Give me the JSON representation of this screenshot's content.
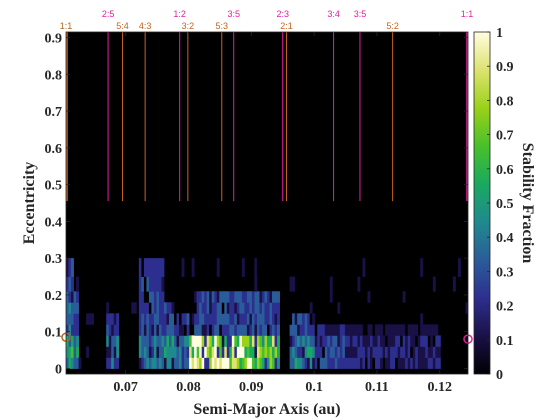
{
  "chart_data": {
    "type": "heatmap",
    "title": "",
    "xlabel": "Semi-Major Axis (au)",
    "ylabel": "Eccentricity",
    "colorbar_label": "Stability Fraction",
    "xlim": [
      0.0605,
      0.1245
    ],
    "ylim": [
      -0.015,
      0.915
    ],
    "x_ticks": [
      "0.07",
      "0.08",
      "0.09",
      "0.1",
      "0.11",
      "0.12"
    ],
    "x_tick_values": [
      0.07,
      0.08,
      0.09,
      0.1,
      0.11,
      0.12
    ],
    "y_ticks": [
      "0",
      "0.1",
      "0.2",
      "0.3",
      "0.4",
      "0.5",
      "0.6",
      "0.7",
      "0.8",
      "0.9"
    ],
    "y_tick_values": [
      0,
      0.1,
      0.2,
      0.3,
      0.4,
      0.5,
      0.6,
      0.7,
      0.8,
      0.9
    ],
    "colorbar_ticks": [
      "0",
      "0.1",
      "0.2",
      "0.3",
      "0.4",
      "0.5",
      "0.6",
      "0.7",
      "0.8",
      "0.9",
      "1"
    ],
    "colorbar_tick_values": [
      0,
      0.1,
      0.2,
      0.3,
      0.4,
      0.5,
      0.6,
      0.7,
      0.8,
      0.9,
      1
    ],
    "colormap": [
      "#000004",
      "#1a1147",
      "#2d2f8f",
      "#2b5c9a",
      "#1f8a8e",
      "#1aa960",
      "#49c02a",
      "#9ad11a",
      "#dde36e",
      "#fffde0"
    ],
    "inner_resonances": [
      {
        "label": "2:5",
        "a": 0.0672
      },
      {
        "label": "1:2",
        "a": 0.0786
      },
      {
        "label": "3:5",
        "a": 0.0872
      },
      {
        "label": "2:3",
        "a": 0.095
      },
      {
        "label": "3:4",
        "a": 0.1031
      },
      {
        "label": "3:5",
        "a": 0.1073
      }
    ],
    "outer_resonances": [
      {
        "label": "5:4",
        "a": 0.0695
      },
      {
        "label": "4:3",
        "a": 0.0731
      },
      {
        "label": "3:2",
        "a": 0.0799
      },
      {
        "label": "5:3",
        "a": 0.0853
      },
      {
        "label": "2:1",
        "a": 0.0956
      },
      {
        "label": "5:2",
        "a": 0.1125
      }
    ],
    "edge_labels": [
      {
        "label": "1:1",
        "a": 0.0605,
        "color": "#b5651d"
      },
      {
        "label": "1:1",
        "a": 0.1245,
        "color": "#e0219e"
      }
    ],
    "inner_planet": {
      "a": 0.0605,
      "e": 0.085,
      "color": "#b5651d"
    },
    "outer_planet": {
      "a": 0.1245,
      "e": 0.08,
      "color": "#e0219e"
    },
    "colors": {
      "inner_line": "#e0219e",
      "outer_line": "#c8641e"
    },
    "gap": [
      0.455,
      0.915
    ],
    "e_bins": [
      0.0,
      0.03,
      0.06,
      0.09,
      0.12,
      0.15,
      0.18,
      0.21,
      0.25,
      0.3,
      0.35,
      0.4,
      0.455
    ],
    "stable_regions": [
      {
        "a": [
          0.0605,
          0.0615
        ],
        "e": [
          0.0,
          0.3
        ],
        "value": 0.55
      },
      {
        "a": [
          0.0615,
          0.0625
        ],
        "e": [
          0.0,
          0.2
        ],
        "value": 0.45
      },
      {
        "a": [
          0.067,
          0.069
        ],
        "e": [
          0.0,
          0.15
        ],
        "value": 0.4
      },
      {
        "a": [
          0.072,
          0.076
        ],
        "e": [
          0.0,
          0.28
        ],
        "value": 0.45
      },
      {
        "a": [
          0.076,
          0.0778
        ],
        "e": [
          0.0,
          0.18
        ],
        "value": 0.5
      },
      {
        "a": [
          0.0778,
          0.08
        ],
        "e": [
          0.0,
          0.15
        ],
        "value": 0.4
      },
      {
        "a": [
          0.08,
          0.09
        ],
        "e": [
          0.0,
          0.1
        ],
        "value": 1.0
      },
      {
        "a": [
          0.09,
          0.0945
        ],
        "e": [
          0.0,
          0.1
        ],
        "value": 0.75
      },
      {
        "a": [
          0.0808,
          0.0945
        ],
        "e": [
          0.1,
          0.22
        ],
        "value": 0.5
      },
      {
        "a": [
          0.096,
          0.1
        ],
        "e": [
          0.0,
          0.15
        ],
        "value": 0.45
      },
      {
        "a": [
          0.1,
          0.105
        ],
        "e": [
          0.0,
          0.12
        ],
        "value": 0.3
      },
      {
        "a": [
          0.105,
          0.12
        ],
        "e": [
          0.0,
          0.12
        ],
        "value": 0.2
      }
    ]
  }
}
